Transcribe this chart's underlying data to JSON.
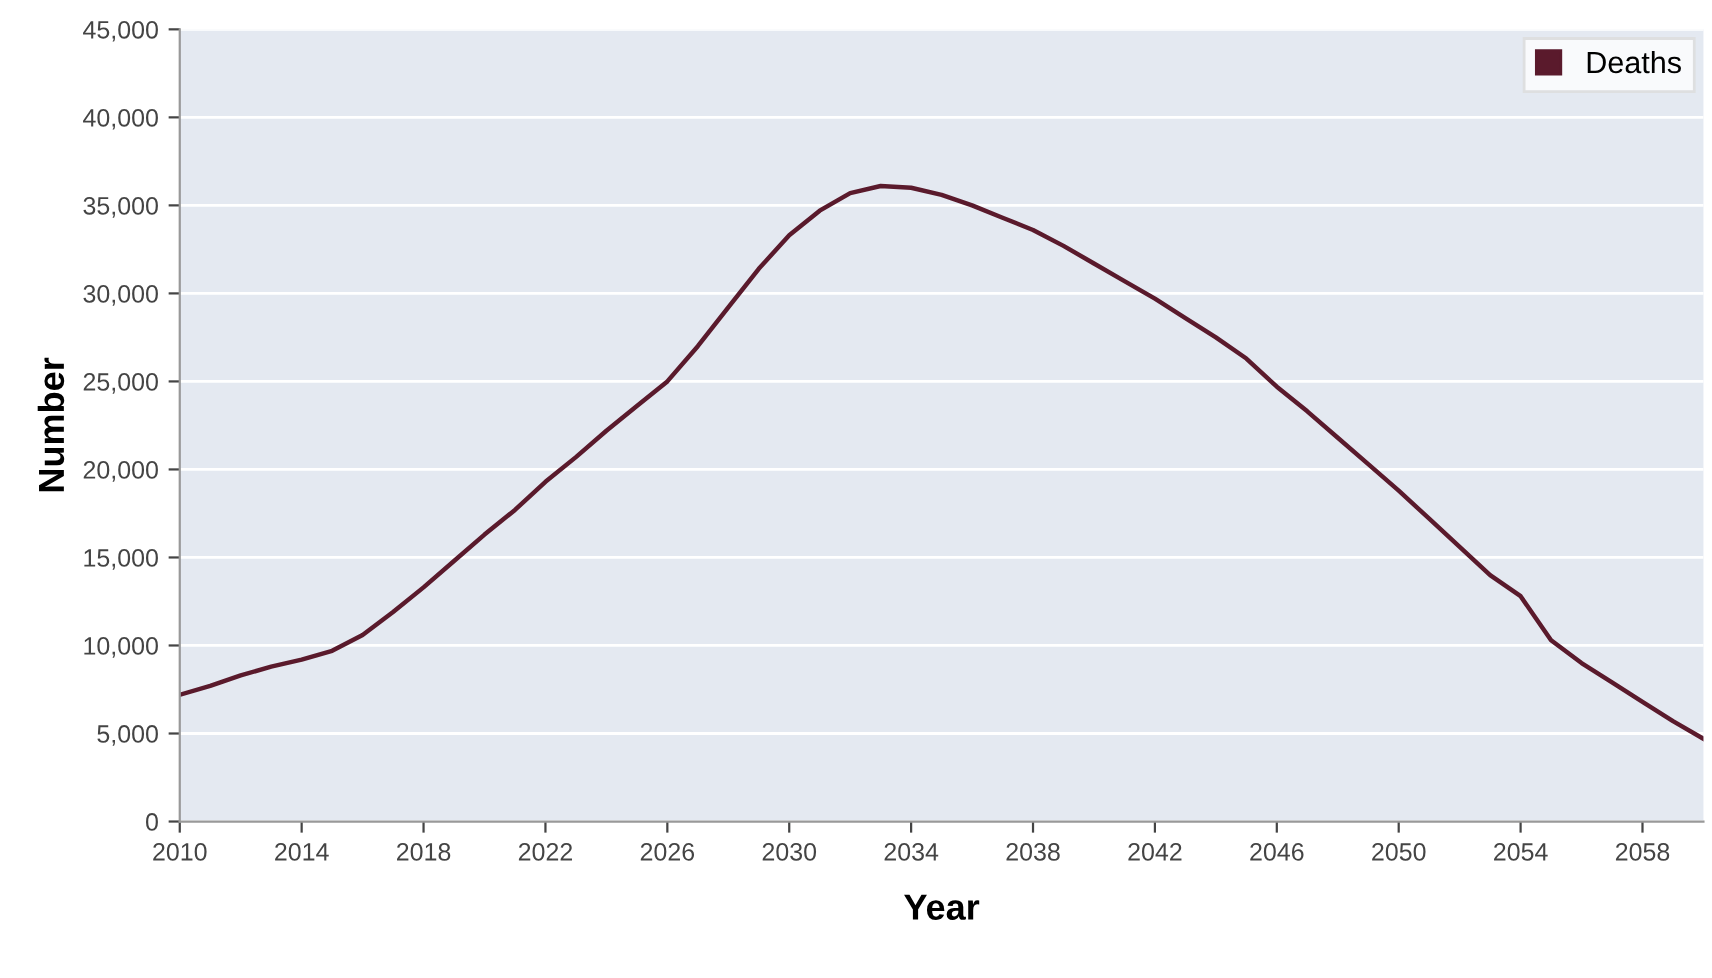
{
  "chart_data": {
    "type": "line",
    "xlabel": "Year",
    "ylabel": "Number",
    "x": [
      2010,
      2011,
      2012,
      2013,
      2014,
      2015,
      2016,
      2017,
      2018,
      2019,
      2020,
      2021,
      2022,
      2023,
      2024,
      2025,
      2026,
      2027,
      2028,
      2029,
      2030,
      2031,
      2032,
      2033,
      2034,
      2035,
      2036,
      2037,
      2038,
      2039,
      2040,
      2041,
      2042,
      2043,
      2044,
      2045,
      2046,
      2047,
      2048,
      2049,
      2050,
      2051,
      2052,
      2053,
      2054,
      2055,
      2056,
      2057,
      2058,
      2059,
      2060
    ],
    "series": [
      {
        "name": "Deaths",
        "color": "#5a1a2c",
        "values": [
          7200,
          7700,
          8300,
          8800,
          9200,
          9700,
          10600,
          11900,
          13300,
          14800,
          16300,
          17700,
          19300,
          20700,
          22200,
          23600,
          25000,
          27000,
          29200,
          31400,
          33300,
          34700,
          35700,
          36100,
          36000,
          35600,
          35000,
          34300,
          33600,
          32700,
          31700,
          30700,
          29700,
          28600,
          27500,
          26300,
          24700,
          23300,
          21800,
          20300,
          18800,
          17200,
          15600,
          14000,
          12800,
          10300,
          9000,
          7900,
          6800,
          5700,
          4700
        ]
      }
    ],
    "xlim": [
      2010,
      2060
    ],
    "xticks": [
      2010,
      2014,
      2018,
      2022,
      2026,
      2030,
      2034,
      2038,
      2042,
      2046,
      2050,
      2054,
      2058
    ],
    "ylim": [
      0,
      45000
    ],
    "yticks": [
      0,
      {
        "value": 5000,
        "label": "5,000"
      },
      {
        "value": 10000,
        "label": "10,000"
      },
      {
        "value": 15000,
        "label": "15,000"
      },
      {
        "value": 20000,
        "label": "20,000"
      },
      {
        "value": 25000,
        "label": "25,000"
      },
      {
        "value": 30000,
        "label": "30,000"
      },
      {
        "value": 35000,
        "label": "35,000"
      },
      {
        "value": 40000,
        "label": "40,000"
      },
      {
        "value": 45000,
        "label": "45,000"
      }
    ],
    "grid": "y",
    "legend": "top right",
    "marker": "none",
    "line_style": "solid"
  }
}
